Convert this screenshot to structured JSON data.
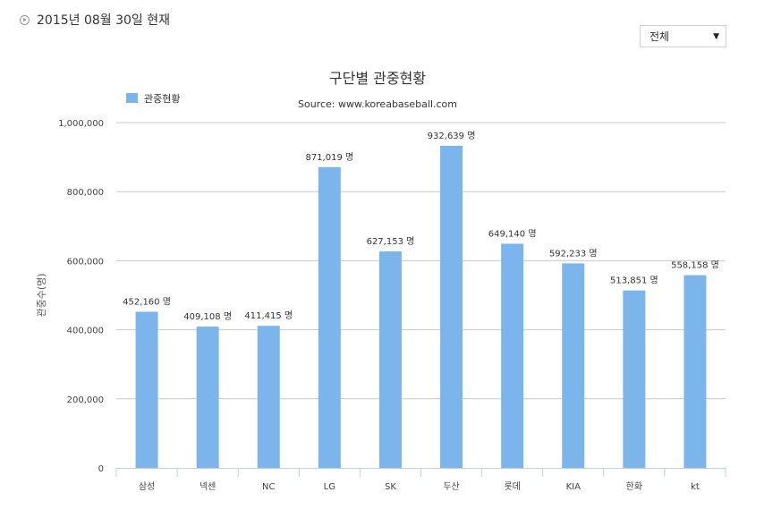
{
  "header": {
    "date_text": "2015년 08월 30일 현재",
    "filter_value": "전체"
  },
  "colors": {
    "bar": "#7cb5ec",
    "grid": "#c8c8c8"
  },
  "chart_data": {
    "type": "bar",
    "title": "구단별 관중현황",
    "subtitle": "Source: www.koreabaseball.com",
    "ylabel": "관중수(명)",
    "xlabel": "",
    "legend": {
      "position": "top-left",
      "entries": [
        "관중현황"
      ]
    },
    "grid": true,
    "ylim": [
      0,
      1000000
    ],
    "yticks": [
      0,
      200000,
      400000,
      600000,
      800000,
      1000000
    ],
    "ytick_labels": [
      "0",
      "200,000",
      "400,000",
      "600,000",
      "800,000",
      "1,000,000"
    ],
    "categories": [
      "삼성",
      "넥센",
      "NC",
      "LG",
      "SK",
      "두산",
      "롯데",
      "KIA",
      "한화",
      "kt"
    ],
    "series": [
      {
        "name": "관중현황",
        "values": [
          452160,
          409108,
          411415,
          871019,
          627153,
          932639,
          649140,
          592233,
          513851,
          558158
        ]
      }
    ],
    "data_labels": [
      "452,160 명",
      "409,108 명",
      "411,415 명",
      "871,019 명",
      "627,153 명",
      "932,639 명",
      "649,140 명",
      "592,233 명",
      "513,851 명",
      "558,158 명"
    ]
  }
}
